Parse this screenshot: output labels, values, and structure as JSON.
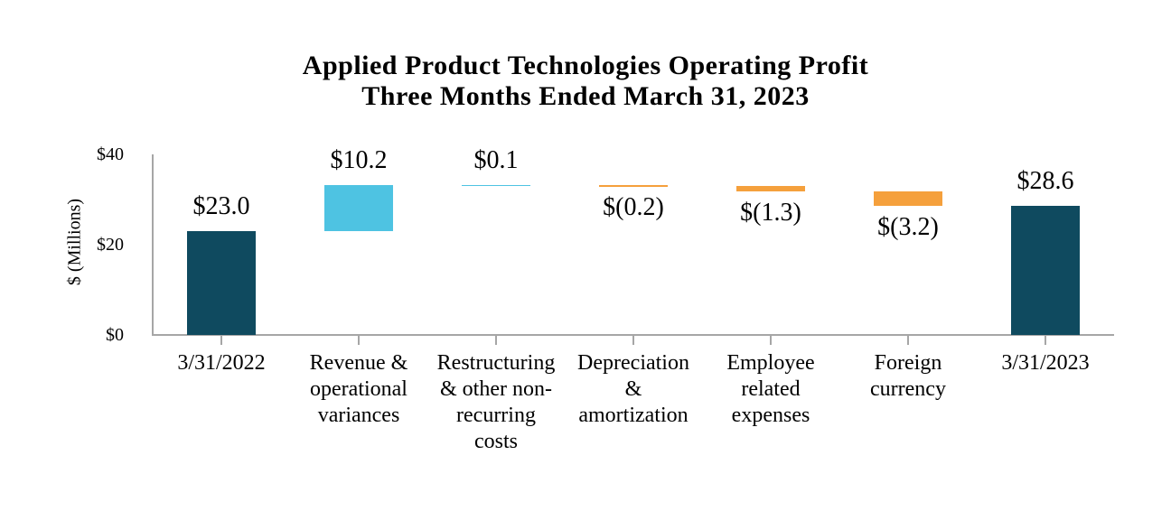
{
  "chart_data": {
    "type": "bar",
    "subtype": "waterfall",
    "title_line1": "Applied Product Technologies Operating Profit",
    "title_line2": "Three Months Ended March 31, 2023",
    "ylabel": "$ (Millions)",
    "ylim": [
      0,
      40
    ],
    "grid": "off",
    "legend": "none",
    "yticks": [
      {
        "value": 0,
        "label": "$0"
      },
      {
        "value": 20,
        "label": "$20"
      },
      {
        "value": 40,
        "label": "$40"
      }
    ],
    "colors": {
      "total": "#0f4a5f",
      "increase": "#4ec3e2",
      "decrease": "#f5a03c",
      "axis": "#a6a6a6"
    },
    "bars": [
      {
        "category": "3/31/2022",
        "value": 23.0,
        "label": "$23.0",
        "start": 0,
        "end": 23.0,
        "role": "total"
      },
      {
        "category": "Revenue &\noperational\nvariances",
        "value": 10.2,
        "label": "$10.2",
        "start": 23.0,
        "end": 33.2,
        "role": "increase"
      },
      {
        "category": "Restructuring\n& other non-\nrecurring\ncosts",
        "value": 0.1,
        "label": "$0.1",
        "start": 33.2,
        "end": 33.3,
        "role": "increase"
      },
      {
        "category": "Depreciation\n&\namortization",
        "value": -0.2,
        "label": "$(0.2)",
        "start": 33.3,
        "end": 33.1,
        "role": "decrease"
      },
      {
        "category": "Employee\nrelated\nexpenses",
        "value": -1.3,
        "label": "$(1.3)",
        "start": 33.1,
        "end": 31.8,
        "role": "decrease"
      },
      {
        "category": "Foreign\ncurrency",
        "value": -3.2,
        "label": "$(3.2)",
        "start": 31.8,
        "end": 28.6,
        "role": "decrease"
      },
      {
        "category": "3/31/2023",
        "value": 28.6,
        "label": "$28.6",
        "start": 0,
        "end": 28.6,
        "role": "total"
      }
    ]
  }
}
